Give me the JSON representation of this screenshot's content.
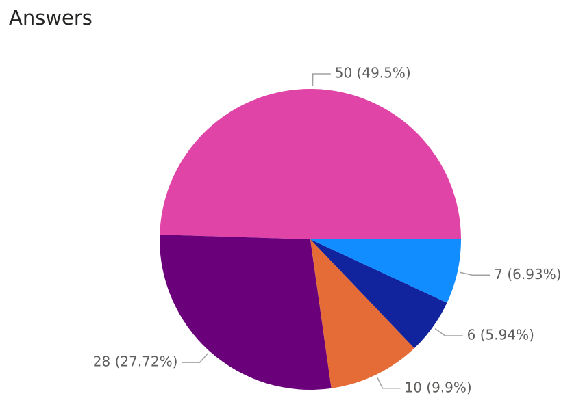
{
  "chart_data": {
    "type": "pie",
    "title": "Answers",
    "values": [
      50,
      28,
      10,
      6,
      7
    ],
    "value_labels": [
      "50 (49.5%)",
      "28 (27.72%)",
      "10 (9.9%)",
      "6 (5.94%)",
      "7 (6.93%)"
    ],
    "colors": [
      "#E044A7",
      "#6B007B",
      "#E66C37",
      "#12239E",
      "#118DFF"
    ]
  }
}
